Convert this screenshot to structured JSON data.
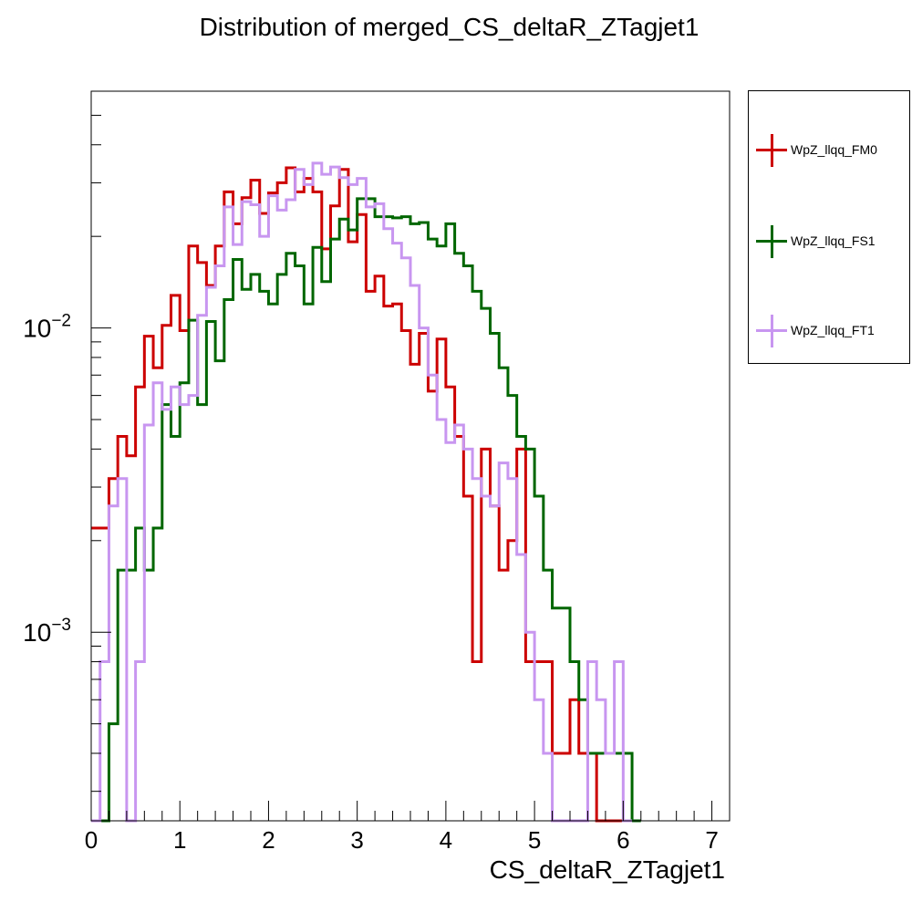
{
  "chart_data": {
    "type": "histogram",
    "title": "Distribution of merged_CS_deltaR_ZTagjet1",
    "xlabel": "CS_deltaR_ZTagjet1",
    "ylabel": "",
    "xlim": [
      0,
      7.2
    ],
    "ylim": [
      0.00024,
      0.06
    ],
    "y_scale": "log",
    "grid": false,
    "legend_position": "right",
    "bin_width": 0.1,
    "x_ticks": [
      "0",
      "1",
      "2",
      "3",
      "4",
      "5",
      "6",
      "7"
    ],
    "y_tick_labels": [
      {
        "value": 0.01,
        "base": "10",
        "exp": "−2"
      },
      {
        "value": 0.001,
        "base": "10",
        "exp": "−3"
      }
    ],
    "series": [
      {
        "name": "WpZ_llqq_FM0",
        "color": "#cc0000",
        "values": [
          0.0022,
          0.0022,
          0.0032,
          0.0044,
          0.0038,
          0.0064,
          0.0094,
          0.0074,
          0.0102,
          0.0128,
          0.0098,
          0.0186,
          0.0164,
          0.0138,
          0.0186,
          0.028,
          0.022,
          0.0268,
          0.0306,
          0.0238,
          0.0278,
          0.03,
          0.0336,
          0.028,
          0.031,
          0.028,
          0.0182,
          0.0252,
          0.0332,
          0.0192,
          0.0236,
          0.0132,
          0.0148,
          0.0118,
          0.012,
          0.0098,
          0.0076,
          0.0096,
          0.0062,
          0.0092,
          0.0064,
          0.0044,
          0.0028,
          0.0008,
          0.004,
          0.0026,
          0.0016,
          0.002,
          0.004,
          0.0008,
          0.0008,
          0.0008,
          0.0004,
          0.0004,
          0.0006,
          0.0004,
          0.0004,
          0.0002,
          0.0002,
          0.0002,
          0.0002
        ]
      },
      {
        "name": "WpZ_llqq_FS1",
        "color": "#006600",
        "values": [
          0.0002,
          0.0002,
          0.0005,
          0.0016,
          0.0016,
          0.0022,
          0.0016,
          0.0022,
          0.0056,
          0.0044,
          0.0066,
          0.0106,
          0.0056,
          0.0105,
          0.0078,
          0.0124,
          0.0168,
          0.0134,
          0.015,
          0.0132,
          0.012,
          0.015,
          0.0176,
          0.016,
          0.012,
          0.0184,
          0.0142,
          0.0196,
          0.0228,
          0.021,
          0.0266,
          0.0266,
          0.0232,
          0.0232,
          0.023,
          0.0232,
          0.022,
          0.0222,
          0.0196,
          0.0186,
          0.022,
          0.0176,
          0.016,
          0.0132,
          0.0116,
          0.0096,
          0.0074,
          0.006,
          0.0044,
          0.004,
          0.0028,
          0.0016,
          0.0012,
          0.0012,
          0.0008,
          0.0006,
          0.0004,
          0.0004,
          0.0004,
          0.0004,
          0.0004,
          0.0002
        ]
      },
      {
        "name": "WpZ_llqq_FT1",
        "color": "#c896f0",
        "values": [
          0.0002,
          0.0008,
          0.0026,
          0.0032,
          0.0002,
          0.0008,
          0.0048,
          0.0066,
          0.0054,
          0.0064,
          0.0056,
          0.006,
          0.011,
          0.0136,
          0.016,
          0.025,
          0.0188,
          0.026,
          0.0254,
          0.02,
          0.0272,
          0.0244,
          0.0264,
          0.0332,
          0.0296,
          0.0348,
          0.032,
          0.0338,
          0.0312,
          0.0296,
          0.031,
          0.025,
          0.0256,
          0.0212,
          0.019,
          0.017,
          0.0138,
          0.01,
          0.007,
          0.005,
          0.0042,
          0.0048,
          0.004,
          0.0032,
          0.0028,
          0.0026,
          0.0036,
          0.0032,
          0.0018,
          0.001,
          0.0006,
          0.0004,
          0.0002,
          0.0002,
          0.0002,
          0.0002,
          0.0008,
          0.0006,
          0.0004,
          0.0008,
          0.0002
        ]
      }
    ]
  }
}
